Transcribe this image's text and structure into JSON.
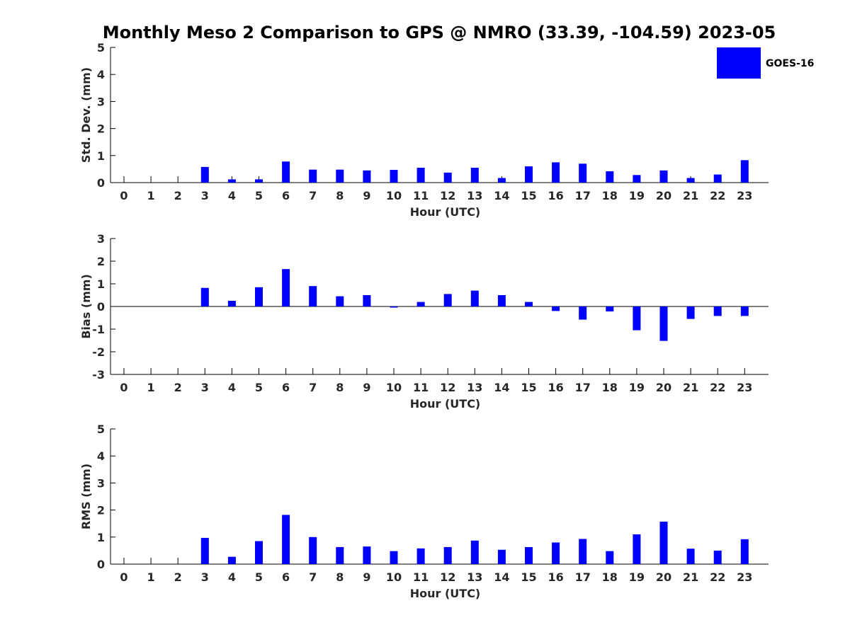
{
  "title": "Monthly Meso 2 Comparison to GPS @ NMRO (33.39, -104.59) 2023-05",
  "legend": {
    "label": "GOES-16",
    "color": "#0000ff",
    "position": "top-right"
  },
  "chart_data": [
    {
      "type": "bar",
      "ylabel": "Std. Dev. (mm)",
      "xlabel": "Hour (UTC)",
      "categories": [
        "0",
        "1",
        "2",
        "3",
        "4",
        "5",
        "6",
        "7",
        "8",
        "9",
        "10",
        "11",
        "12",
        "13",
        "14",
        "15",
        "16",
        "17",
        "18",
        "19",
        "20",
        "21",
        "22",
        "23"
      ],
      "ylim": [
        0,
        5
      ],
      "yticks": [
        "0",
        "1",
        "2",
        "3",
        "4",
        "5"
      ],
      "series": [
        {
          "name": "GOES-16",
          "color": "#0000ff",
          "values": [
            null,
            null,
            null,
            0.58,
            0.12,
            0.12,
            0.78,
            0.48,
            0.48,
            0.45,
            0.47,
            0.55,
            0.37,
            0.55,
            0.17,
            0.6,
            0.75,
            0.7,
            0.42,
            0.28,
            0.45,
            0.17,
            0.3,
            0.83
          ]
        }
      ]
    },
    {
      "type": "bar",
      "ylabel": "Bias (mm)",
      "xlabel": "Hour (UTC)",
      "categories": [
        "0",
        "1",
        "2",
        "3",
        "4",
        "5",
        "6",
        "7",
        "8",
        "9",
        "10",
        "11",
        "12",
        "13",
        "14",
        "15",
        "16",
        "17",
        "18",
        "19",
        "20",
        "21",
        "22",
        "23"
      ],
      "ylim": [
        -3,
        3
      ],
      "yticks": [
        "-3",
        "-2",
        "-1",
        "0",
        "1",
        "2",
        "3"
      ],
      "series": [
        {
          "name": "GOES-16",
          "color": "#0000ff",
          "values": [
            null,
            null,
            null,
            0.82,
            0.25,
            0.85,
            1.65,
            0.9,
            0.45,
            0.5,
            -0.05,
            0.2,
            0.55,
            0.7,
            0.5,
            0.2,
            -0.2,
            -0.58,
            -0.22,
            -1.05,
            -1.52,
            -0.55,
            -0.42,
            -0.42
          ]
        }
      ]
    },
    {
      "type": "bar",
      "ylabel": "RMS (mm)",
      "xlabel": "Hour (UTC)",
      "categories": [
        "0",
        "1",
        "2",
        "3",
        "4",
        "5",
        "6",
        "7",
        "8",
        "9",
        "10",
        "11",
        "12",
        "13",
        "14",
        "15",
        "16",
        "17",
        "18",
        "19",
        "20",
        "21",
        "22",
        "23"
      ],
      "ylim": [
        0,
        5
      ],
      "yticks": [
        "0",
        "1",
        "2",
        "3",
        "4",
        "5"
      ],
      "series": [
        {
          "name": "GOES-16",
          "color": "#0000ff",
          "values": [
            null,
            null,
            null,
            0.97,
            0.27,
            0.85,
            1.82,
            1.0,
            0.63,
            0.65,
            0.48,
            0.58,
            0.63,
            0.87,
            0.53,
            0.63,
            0.8,
            0.93,
            0.48,
            1.1,
            1.57,
            0.57,
            0.5,
            0.92
          ]
        }
      ]
    }
  ]
}
